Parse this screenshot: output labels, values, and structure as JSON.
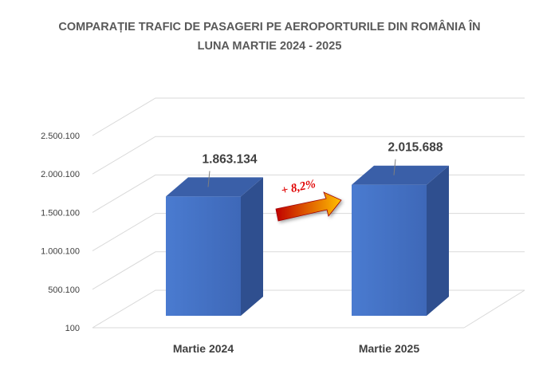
{
  "title_line1": "COMPARAȚIE TRAFIC DE PASAGERI PE AEROPORTURILE DIN ROMÂNIA ÎN",
  "title_line2": "LUNA MARTIE 2024 - 2025",
  "growth_label": "+ 8,2%",
  "colors": {
    "bar_front": "#4472c4",
    "bar_side": "#2f4f8f",
    "bar_top": "#3a5fa8",
    "arrow_start": "#c00000",
    "arrow_end": "#ffc000",
    "grid": "#d9d9d9"
  },
  "chart_data": {
    "type": "bar",
    "three_d": true,
    "categories": [
      "Martie 2024",
      "Martie 2025"
    ],
    "values": [
      1863134,
      2015688
    ],
    "data_labels": [
      "1.863.134",
      "2.015.688"
    ],
    "y_ticks": [
      "100",
      "500.100",
      "1.000.100",
      "1.500.100",
      "2.000.100",
      "2.500.100"
    ],
    "ylim": [
      100,
      2500100
    ],
    "grid": true,
    "legend": "none"
  }
}
